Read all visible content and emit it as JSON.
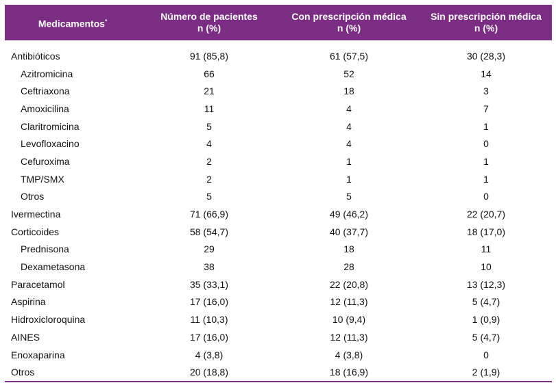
{
  "header": {
    "col1": "Medicamentos",
    "col1_mark": "*",
    "col2_line1": "Número de pacientes",
    "col2_line2": "n (%)",
    "col3_line1": "Con prescripción médica",
    "col3_line2": "n (%)",
    "col4_line1": "Sin prescripción médica",
    "col4_line2": "n (%)"
  },
  "colors": {
    "header_bg": "#7a2d83",
    "header_text": "#ffffff"
  },
  "rows": [
    {
      "name": "Antibióticos",
      "total": "91 (85,8)",
      "con": "61 (57,5)",
      "sin": "30 (28,3)",
      "sub": false
    },
    {
      "name": "Azitromicina",
      "total": "66",
      "con": "52",
      "sin": "14",
      "sub": true
    },
    {
      "name": "Ceftriaxona",
      "total": "21",
      "con": "18",
      "sin": "3",
      "sub": true
    },
    {
      "name": "Amoxicilina",
      "total": "11",
      "con": "4",
      "sin": "7",
      "sub": true
    },
    {
      "name": "Claritromicina",
      "total": "5",
      "con": "4",
      "sin": "1",
      "sub": true
    },
    {
      "name": "Levofloxacino",
      "total": "4",
      "con": "4",
      "sin": "0",
      "sub": true
    },
    {
      "name": "Cefuroxima",
      "total": "2",
      "con": "1",
      "sin": "1",
      "sub": true
    },
    {
      "name": "TMP/SMX",
      "total": "2",
      "con": "1",
      "sin": "1",
      "sub": true
    },
    {
      "name": "Otros",
      "total": "5",
      "con": "5",
      "sin": "0",
      "sub": true
    },
    {
      "name": "Ivermectina",
      "total": "71 (66,9)",
      "con": "49 (46,2)",
      "sin": "22 (20,7)",
      "sub": false
    },
    {
      "name": "Corticoides",
      "total": "58 (54,7)",
      "con": "40 (37,7)",
      "sin": "18 (17,0)",
      "sub": false
    },
    {
      "name": "Prednisona",
      "total": "29",
      "con": "18",
      "sin": "11",
      "sub": true
    },
    {
      "name": "Dexametasona",
      "total": "38",
      "con": "28",
      "sin": "10",
      "sub": true
    },
    {
      "name": "Paracetamol",
      "total": "35 (33,1)",
      "con": "22 (20,8)",
      "sin": "13 (12,3)",
      "sub": false
    },
    {
      "name": "Aspirina",
      "total": "17 (16,0)",
      "con": "12 (11,3)",
      "sin": "5 (4,7)",
      "sub": false
    },
    {
      "name": "Hidroxicloroquina",
      "total": "11 (10,3)",
      "con": "10 (9,4)",
      "sin": "1 (0,9)",
      "sub": false
    },
    {
      "name": "AINES",
      "total": "17 (16,0)",
      "con": "12 (11,3)",
      "sin": "5 (4,7)",
      "sub": false
    },
    {
      "name": "Enoxaparina",
      "total": "4 (3,8)",
      "con": "4 (3,8)",
      "sin": "0",
      "sub": false
    },
    {
      "name": "Otros",
      "total": "20 (18,8)",
      "con": "18 (16,9)",
      "sin": "2 (1,9)",
      "sub": false
    }
  ]
}
